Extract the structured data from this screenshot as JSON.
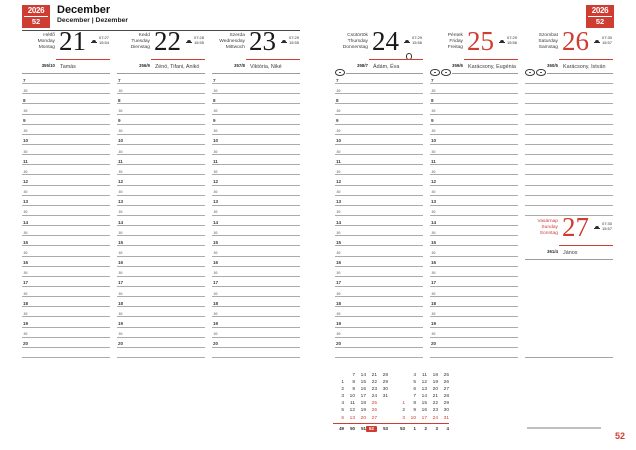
{
  "app": {
    "year": "2026",
    "week": "52",
    "page_number": "52"
  },
  "colors": {
    "accent_red": "#cf3c32"
  },
  "header": {
    "month": "December",
    "month_langs": "December | Dezember"
  },
  "grid": {
    "hour_rows": [
      "7",
      "30",
      "8",
      "30",
      "9",
      "30",
      "10",
      "30",
      "11",
      "30",
      "12",
      "30",
      "13",
      "30",
      "14",
      "30",
      "15",
      "30",
      "16",
      "30",
      "17",
      "30",
      "18",
      "30",
      "19",
      "30",
      "20",
      ""
    ],
    "saturday_blank_rows": 14
  },
  "days": [
    {
      "name_hu": "Hétfő",
      "name_en": "Monday",
      "name_de": "Montag",
      "number": "21",
      "holiday": false,
      "names_red": false,
      "sunrise": "07:27",
      "sunset": "15:54",
      "day_of_year": "355/10",
      "namedays": "Tamás",
      "event_icons": 0,
      "full_moon": false
    },
    {
      "name_hu": "Kedd",
      "name_en": "Tuesday",
      "name_de": "Dienstag",
      "number": "22",
      "holiday": false,
      "names_red": false,
      "sunrise": "07:28",
      "sunset": "15:55",
      "day_of_year": "356/9",
      "namedays": "Zénó, Tifani, Anikó",
      "event_icons": 0,
      "full_moon": false
    },
    {
      "name_hu": "Szerda",
      "name_en": "Wednesday",
      "name_de": "Mittwoch",
      "number": "23",
      "holiday": false,
      "names_red": false,
      "sunrise": "07:29",
      "sunset": "15:55",
      "day_of_year": "357/8",
      "namedays": "Viktória, Niké",
      "event_icons": 0,
      "full_moon": false
    },
    {
      "name_hu": "Csütörtök",
      "name_en": "Thursday",
      "name_de": "Donnerstag",
      "number": "24",
      "holiday": false,
      "names_red": false,
      "sunrise": "07:29",
      "sunset": "15:56",
      "day_of_year": "358/7",
      "namedays": "Ádám, Éva",
      "event_icons": 1,
      "full_moon": true
    },
    {
      "name_hu": "Péntek",
      "name_en": "Friday",
      "name_de": "Freitag",
      "number": "25",
      "holiday": true,
      "names_red": false,
      "sunrise": "07:29",
      "sunset": "15:56",
      "day_of_year": "359/6",
      "namedays": "Karácsony, Eugénia",
      "event_icons": 2,
      "full_moon": false
    },
    {
      "name_hu": "Szombat",
      "name_en": "Saturday",
      "name_de": "Samstag",
      "number": "26",
      "holiday": true,
      "names_red": false,
      "sunrise": "07:30",
      "sunset": "15:57",
      "day_of_year": "360/5",
      "namedays": "Karácsony, István",
      "event_icons": 2,
      "full_moon": false
    },
    {
      "name_hu": "Vasárnap",
      "name_en": "Sunday",
      "name_de": "Sonntag",
      "number": "27",
      "holiday": true,
      "names_red": true,
      "sunrise": "07:30",
      "sunset": "15:57",
      "day_of_year": "361/4",
      "namedays": "János",
      "event_icons": 0,
      "full_moon": false
    }
  ],
  "mini_calendar": {
    "months": [
      {
        "rows": [
          [
            "",
            "7",
            "14",
            "21",
            "28"
          ],
          [
            "1",
            "8",
            "15",
            "22",
            "29"
          ],
          [
            "2",
            "9",
            "16",
            "23",
            "30"
          ],
          [
            "3",
            "10",
            "17",
            "24",
            "31"
          ],
          [
            "4",
            "11",
            "18",
            "25",
            ""
          ],
          [
            "5",
            "12",
            "19",
            "26",
            ""
          ],
          [
            "6",
            "13",
            "20",
            "27",
            ""
          ]
        ],
        "red_cells": [
          [
            4,
            3
          ],
          [
            5,
            3
          ],
          [
            6,
            0
          ],
          [
            6,
            1
          ],
          [
            6,
            2
          ],
          [
            6,
            3
          ]
        ]
      },
      {
        "rows": [
          [
            "",
            "4",
            "11",
            "18",
            "25"
          ],
          [
            "",
            "5",
            "12",
            "19",
            "26"
          ],
          [
            "",
            "6",
            "13",
            "20",
            "27"
          ],
          [
            "",
            "7",
            "14",
            "21",
            "28"
          ],
          [
            "1",
            "8",
            "15",
            "22",
            "29"
          ],
          [
            "2",
            "9",
            "16",
            "23",
            "30"
          ],
          [
            "3",
            "10",
            "17",
            "24",
            "31"
          ]
        ],
        "red_cells": [
          [
            4,
            0
          ],
          [
            6,
            0
          ],
          [
            6,
            1
          ],
          [
            6,
            2
          ],
          [
            6,
            3
          ],
          [
            6,
            4
          ]
        ]
      }
    ],
    "week_numbers": [
      "49",
      "50",
      "51",
      "52",
      "53",
      "53",
      "1",
      "2",
      "3",
      "4"
    ],
    "current_week_index": 3
  }
}
